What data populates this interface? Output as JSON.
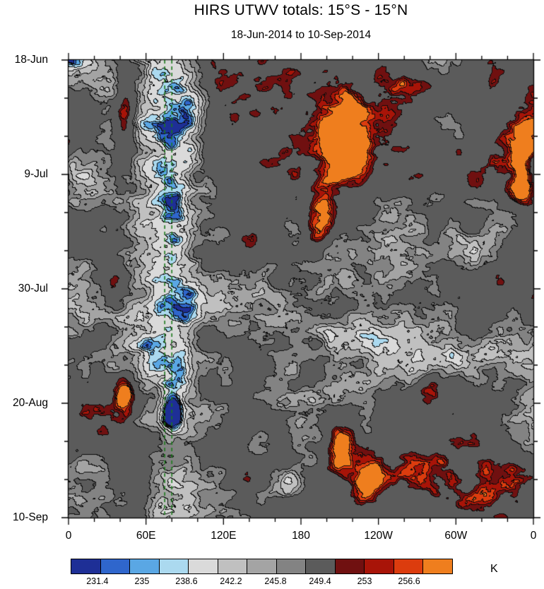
{
  "title": "HIRS UTWV totals: 15°S - 15°N",
  "subtitle": "18-Jun-2014 to 10-Sep-2014",
  "axes": {
    "x_ticks": [
      "0",
      "60E",
      "120E",
      "180",
      "120W",
      "60W",
      "0"
    ],
    "y_ticks": [
      "18-Jun",
      "9-Jul",
      "30-Jul",
      "20-Aug",
      "10-Sep"
    ]
  },
  "colorbar": {
    "unit": "K",
    "labels": [
      "231.4",
      "235",
      "238.6",
      "242.2",
      "245.8",
      "249.4",
      "253",
      "256.6"
    ],
    "colors": [
      "#1e2f96",
      "#2f66cc",
      "#5aa7e4",
      "#abd9ef",
      "#dadada",
      "#c0c0c0",
      "#a4a4a4",
      "#838383",
      "#5b5b5b",
      "#701010",
      "#a81408",
      "#dc3c0e",
      "#ef7e1e"
    ]
  },
  "chart_data": {
    "type": "heatmap",
    "title": "HIRS UTWV totals: 15°S - 15°N",
    "subtitle": "18-Jun-2014 to 10-Sep-2014",
    "units": "K",
    "x_axis": {
      "quantity": "longitude",
      "range_deg": [
        0,
        360
      ],
      "tick_labels": [
        "0",
        "60E",
        "120E",
        "180",
        "120W",
        "60W",
        "0"
      ],
      "minor_tick_interval_deg": 20
    },
    "y_axis": {
      "quantity": "time",
      "start": "18-Jun-2014",
      "end": "10-Sep-2014",
      "direction": "downward",
      "tick_labels": [
        "18-Jun",
        "9-Jul",
        "30-Jul",
        "20-Aug",
        "10-Sep"
      ],
      "major_tick_interval_days": 21,
      "minor_tick_interval_days": 7
    },
    "contour_levels_k": [
      231.4,
      235,
      238.6,
      242.2,
      245.8,
      249.4,
      253,
      256.6
    ],
    "palette": [
      "#1e2f96",
      "#2f66cc",
      "#5aa7e4",
      "#abd9ef",
      "#dadada",
      "#c0c0c0",
      "#a4a4a4",
      "#838383",
      "#5b5b5b",
      "#701010",
      "#a81408",
      "#dc3c0e",
      "#ef7e1e"
    ],
    "background_range_k": [
      242,
      252
    ],
    "moist_band": {
      "center_lon_e": 78,
      "half_width_deg": 26,
      "typical_k_range": [
        235,
        242
      ],
      "note": "persistent light-gray/pale-blue vertical band near 60E-100E"
    },
    "reference_lines": {
      "style": "dashed",
      "color": "#1b7a1b",
      "longitudes_e": [
        74.5,
        80
      ]
    },
    "anomalies": [
      {
        "lon_e": 213,
        "time_frac": 0.18,
        "type": "warm",
        "strength": 0.65,
        "rlon": 22,
        "rtime": 0.08
      },
      {
        "lon_e": 200,
        "time_frac": 0.29,
        "type": "warm",
        "strength": 0.3,
        "rlon": 14,
        "rtime": 0.05
      },
      {
        "lon_e": 44,
        "time_frac": 0.12,
        "type": "warm",
        "strength": 0.45,
        "rlon": 8,
        "rtime": 0.1
      },
      {
        "lon_e": 36,
        "time_frac": 0.49,
        "type": "warm",
        "strength": 0.3,
        "rlon": 7,
        "rtime": 0.04
      },
      {
        "lon_e": 44,
        "time_frac": 0.73,
        "type": "warm",
        "strength": 0.42,
        "rlon": 8,
        "rtime": 0.06
      },
      {
        "lon_e": 196,
        "time_frac": 0.36,
        "type": "warm",
        "strength": 0.35,
        "rlon": 12,
        "rtime": 0.05
      },
      {
        "lon_e": 284,
        "time_frac": 0.36,
        "type": "warm",
        "strength": 0.3,
        "rlon": 9,
        "rtime": 0.04
      },
      {
        "lon_e": 352,
        "time_frac": 0.2,
        "type": "warm",
        "strength": 0.35,
        "rlon": 9,
        "rtime": 0.07
      },
      {
        "lon_e": 350,
        "time_frac": 0.28,
        "type": "warm",
        "strength": 0.35,
        "rlon": 9,
        "rtime": 0.04
      },
      {
        "lon_e": 330,
        "time_frac": 0.03,
        "type": "warm",
        "strength": 0.3,
        "rlon": 10,
        "rtime": 0.04
      },
      {
        "lon_e": 210,
        "time_frac": 0.84,
        "type": "warm",
        "strength": 0.5,
        "rlon": 11,
        "rtime": 0.05
      },
      {
        "lon_e": 231,
        "time_frac": 0.92,
        "type": "warm",
        "strength": 0.35,
        "rlon": 10,
        "rtime": 0.04
      },
      {
        "lon_e": 281,
        "time_frac": 0.72,
        "type": "warm",
        "strength": 0.25,
        "rlon": 8,
        "rtime": 0.04
      },
      {
        "lon_e": 95,
        "time_frac": 0.1,
        "type": "cold",
        "strength": 0.25,
        "rlon": 14,
        "rtime": 0.06
      },
      {
        "lon_e": 83,
        "time_frac": 0.3,
        "type": "cold",
        "strength": 0.22,
        "rlon": 10,
        "rtime": 0.05
      },
      {
        "lon_e": 119,
        "time_frac": 0.38,
        "type": "cold",
        "strength": 0.22,
        "rlon": 10,
        "rtime": 0.04
      },
      {
        "lon_e": 152,
        "time_frac": 0.46,
        "type": "cold",
        "strength": 0.2,
        "rlon": 8,
        "rtime": 0.04
      },
      {
        "lon_e": 80,
        "time_frac": 0.765,
        "type": "cold",
        "strength": 0.4,
        "rlon": 7,
        "rtime": 0.045
      },
      {
        "lon_e": 90,
        "time_frac": 0.67,
        "type": "cold",
        "strength": 0.25,
        "rlon": 8,
        "rtime": 0.05
      },
      {
        "lon_e": 168,
        "time_frac": 0.93,
        "type": "cold",
        "strength": 0.25,
        "rlon": 12,
        "rtime": 0.04
      },
      {
        "lon_e": 310,
        "time_frac": 0.88,
        "type": "cold",
        "strength": 0.22,
        "rlon": 10,
        "rtime": 0.06
      },
      {
        "lon_e": 205,
        "time_frac": 0.6,
        "type": "cold",
        "strength": 0.16,
        "rlon": 9,
        "rtime": 0.04
      },
      {
        "lon_e": 262,
        "time_frac": 0.7,
        "type": "cold",
        "strength": 0.15,
        "rlon": 8,
        "rtime": 0.04
      }
    ]
  }
}
